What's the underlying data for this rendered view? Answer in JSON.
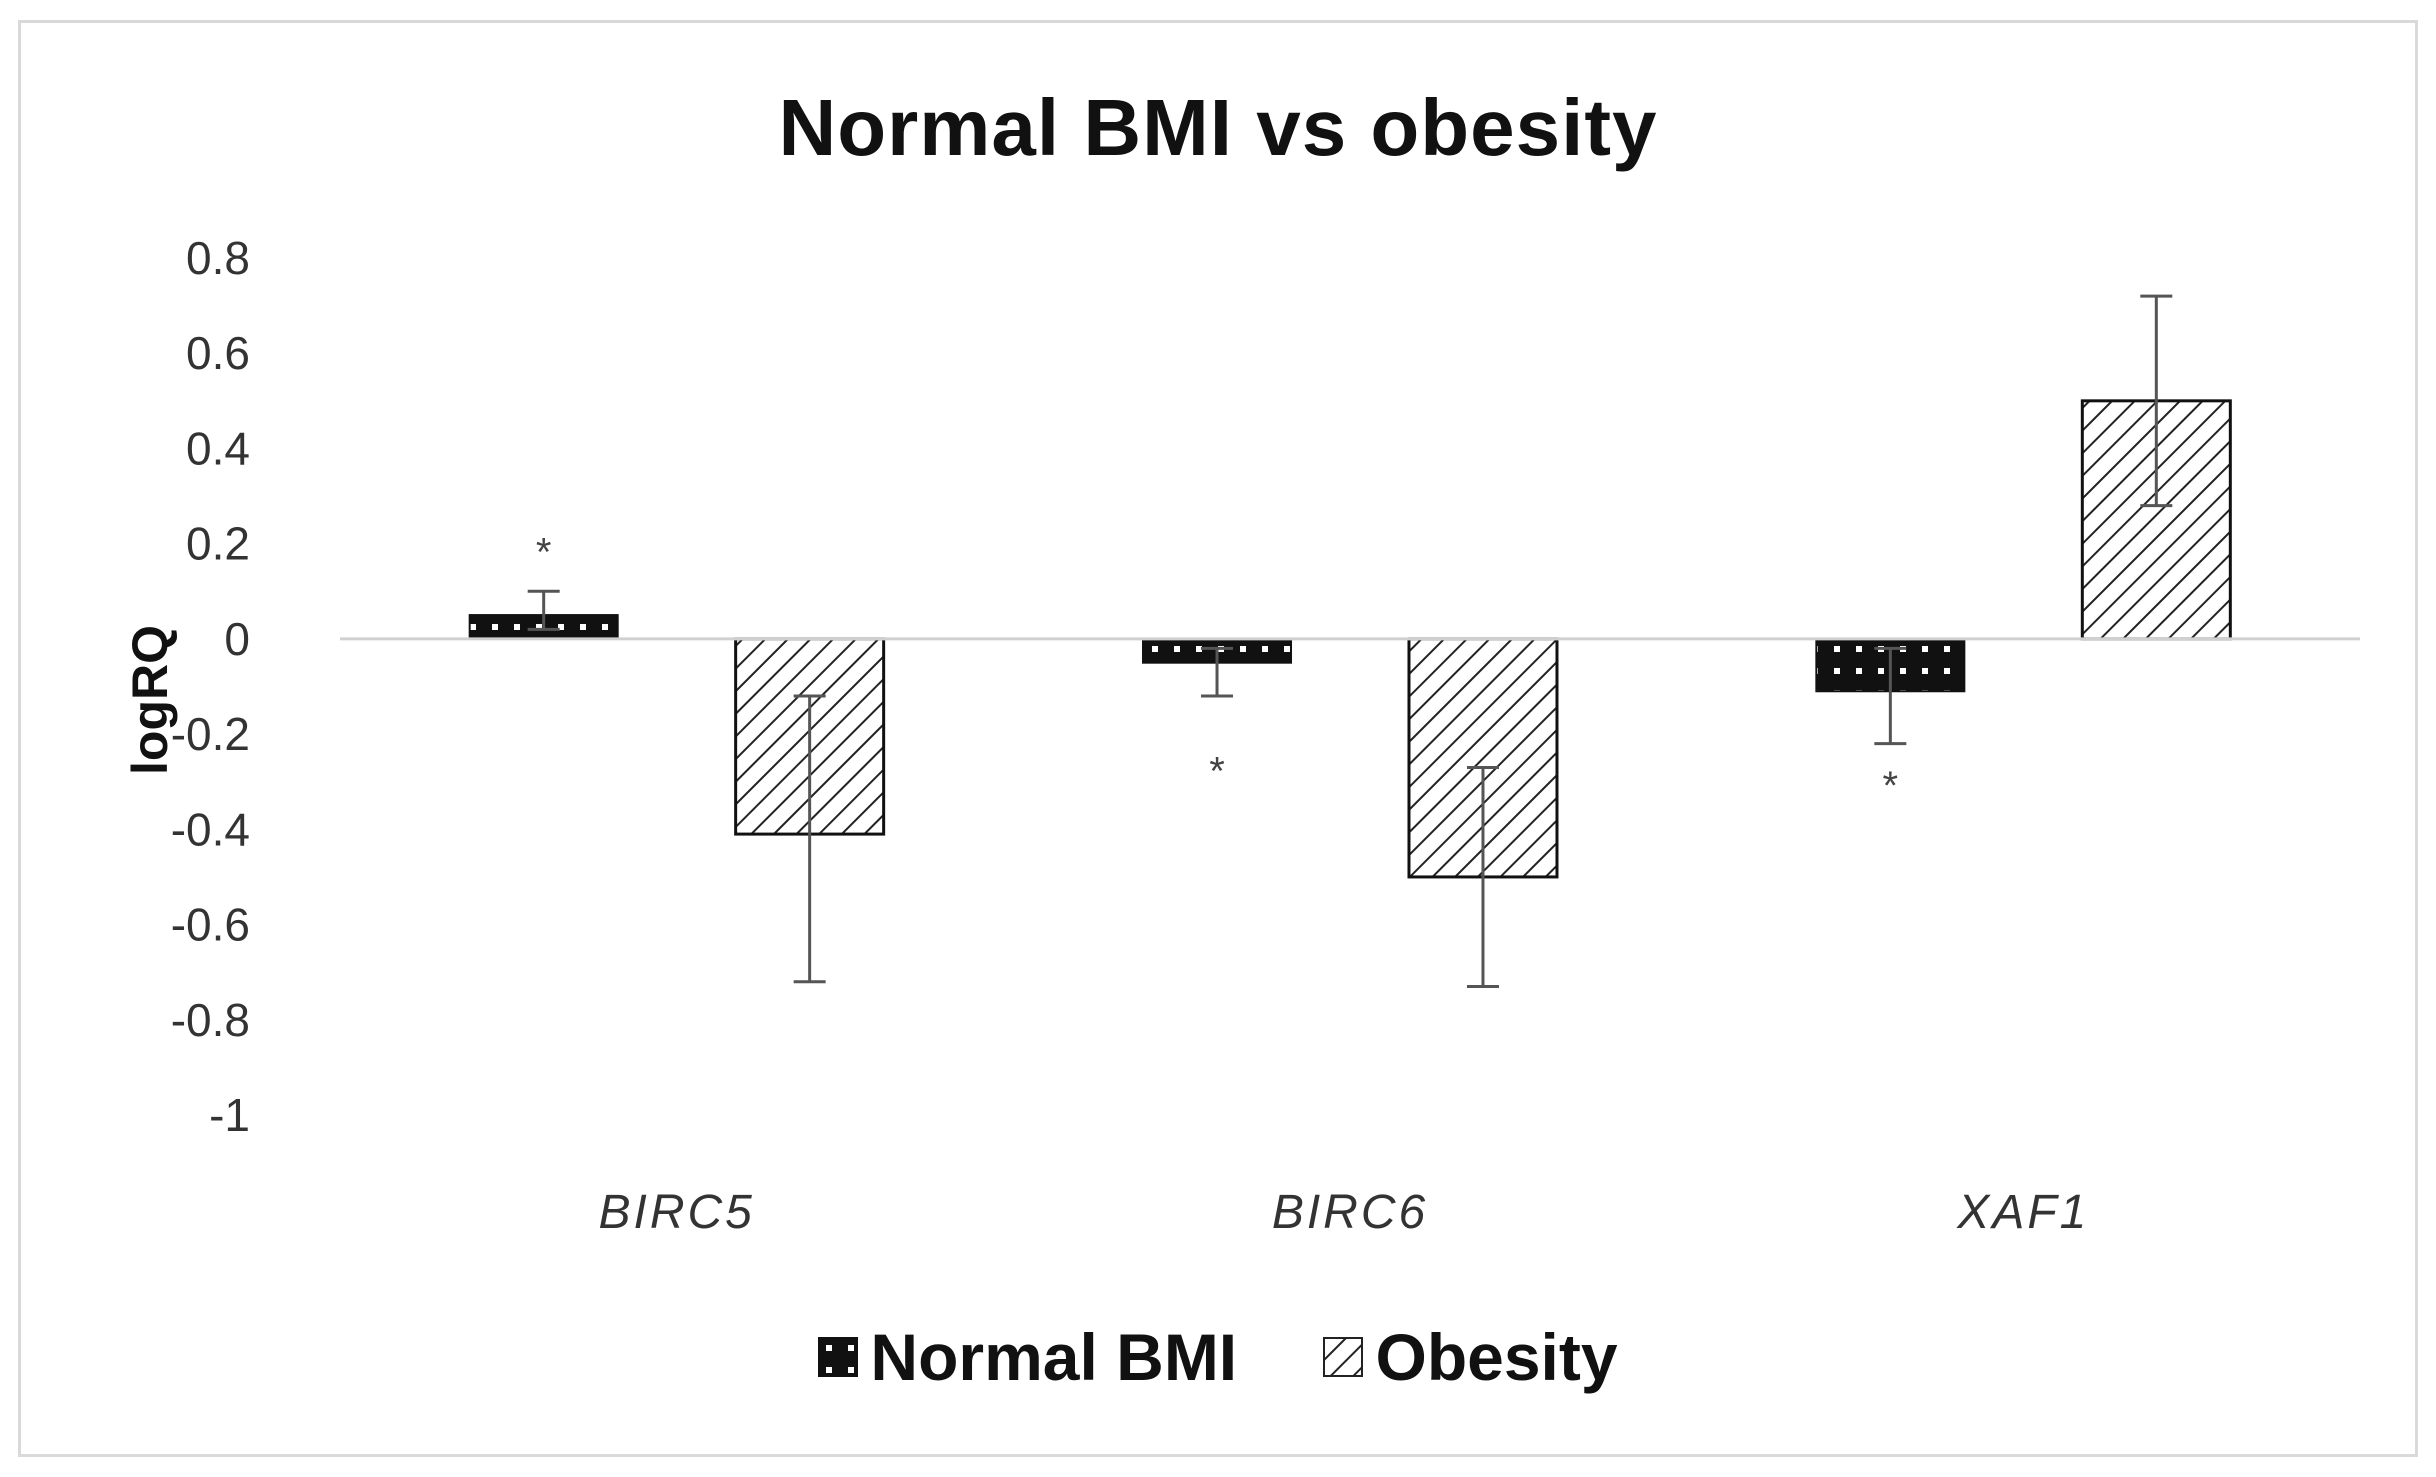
{
  "chart_data": {
    "type": "bar",
    "title": "Normal BMI vs obesity",
    "xlabel": "",
    "ylabel": "logRQ",
    "ylim": [
      -1,
      0.8
    ],
    "yticks": [
      0.8,
      0.6,
      0.4,
      0.2,
      0,
      -0.2,
      -0.4,
      -0.6,
      -0.8,
      -1
    ],
    "ytick_labels": [
      "0.8",
      "0.6",
      "0.4",
      "0.2",
      "0",
      "-0.2",
      "-0.4",
      "-0.6",
      "-0.8",
      "-1"
    ],
    "categories": [
      "BIRC5",
      "BIRC6",
      "XAF1"
    ],
    "series": [
      {
        "name": "Normal BMI",
        "values": [
          0.05,
          -0.05,
          -0.11
        ],
        "err_low": [
          0.02,
          -0.12,
          -0.22
        ],
        "err_high": [
          0.1,
          -0.02,
          -0.02
        ],
        "color": "#111111",
        "pattern": "dotted"
      },
      {
        "name": "Obesity",
        "values": [
          -0.41,
          -0.5,
          0.5
        ],
        "err_low": [
          -0.72,
          -0.73,
          0.28
        ],
        "err_high": [
          -0.12,
          -0.27,
          0.72
        ],
        "color": "#111111",
        "pattern": "diagonal-hatch"
      }
    ],
    "annotations": [
      {
        "text": "*",
        "category": "BIRC5",
        "series": "Normal BMI",
        "y": 0.2
      },
      {
        "text": "*",
        "category": "BIRC6",
        "series": "Normal BMI",
        "y": -0.26
      },
      {
        "text": "*",
        "category": "XAF1",
        "series": "Normal BMI",
        "y": -0.29
      }
    ],
    "legend": [
      "Normal BMI",
      "Obesity"
    ],
    "legend_position": "bottom",
    "grid": false
  }
}
